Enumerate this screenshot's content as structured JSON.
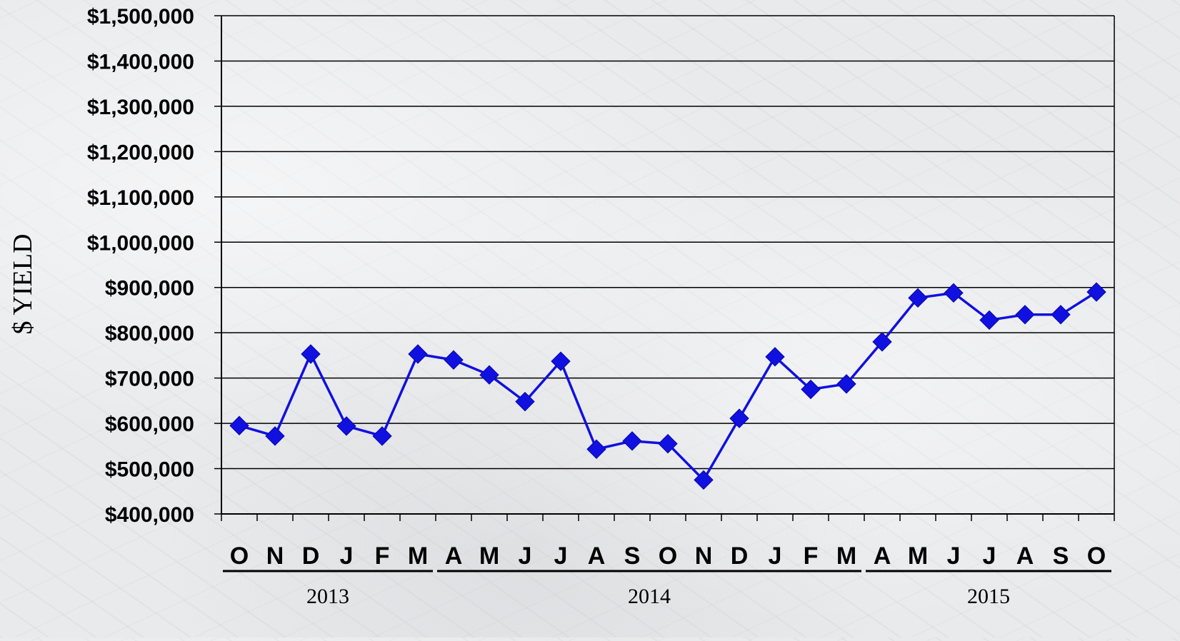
{
  "chart_data": {
    "type": "line",
    "ylabel": "$ YIELD",
    "xlabel": "",
    "ylim": [
      400000,
      1500000
    ],
    "ytick_step": 100000,
    "yticks": [
      "$400,000",
      "$500,000",
      "$600,000",
      "$700,000",
      "$800,000",
      "$900,000",
      "$1,000,000",
      "$1,100,000",
      "$1,200,000",
      "$1,300,000",
      "$1,400,000",
      "$1,500,000"
    ],
    "grid": true,
    "categories": [
      "O",
      "N",
      "D",
      "J",
      "F",
      "M",
      "A",
      "M",
      "J",
      "J",
      "A",
      "S",
      "O",
      "N",
      "D",
      "J",
      "F",
      "M",
      "A",
      "M",
      "J",
      "J",
      "A",
      "S",
      "O"
    ],
    "year_groups": [
      {
        "label": "2013",
        "start": 0,
        "end": 5
      },
      {
        "label": "2014",
        "start": 6,
        "end": 17
      },
      {
        "label": "2015",
        "start": 18,
        "end": 24
      }
    ],
    "series": [
      {
        "color": "#1010e0",
        "marker": "diamond",
        "values": [
          595000,
          572000,
          753000,
          594000,
          572000,
          753000,
          740000,
          707000,
          648000,
          737000,
          543000,
          561000,
          555000,
          475000,
          611000,
          747000,
          675000,
          687000,
          780000,
          877000,
          888000,
          828000,
          840000,
          840000,
          890000
        ]
      }
    ]
  }
}
